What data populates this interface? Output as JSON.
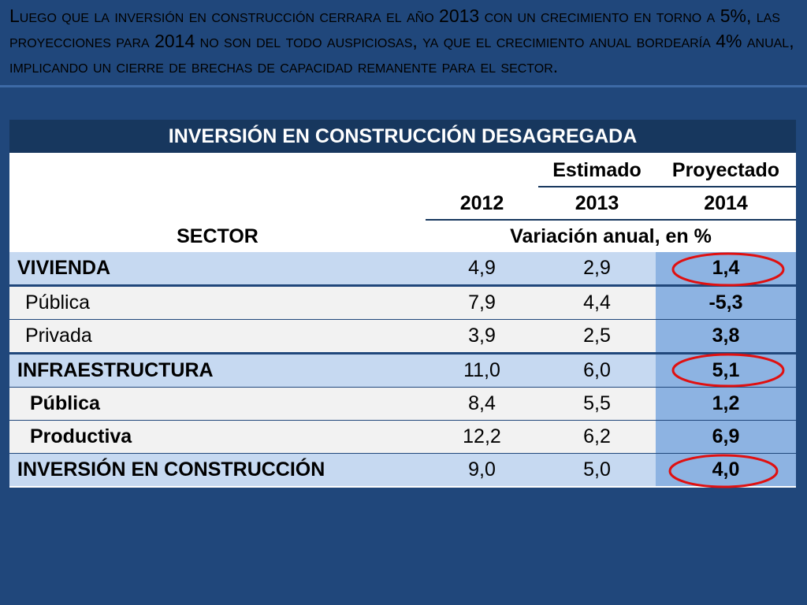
{
  "intro": "Luego que la inversión en construcción cerrara el año 2013 con un crecimiento en torno a 5%, las proyecciones para 2014 no son del todo auspiciosas, ya que el crecimiento anual bordearía 4% anual, implicando un cierre de brechas de capacidad remanente para el sector.",
  "table": {
    "title": "INVERSIÓN EN CONSTRUCCIÓN DESAGREGADA",
    "estimated": "Estimado",
    "projected": "Proyectado",
    "years": [
      "2012",
      "2013",
      "2014"
    ],
    "sector_label": "SECTOR",
    "unit_label": "Variación anual, en %",
    "rows": [
      [
        "VIVIENDA",
        "4,9",
        "2,9",
        "1,4"
      ],
      [
        "Pública",
        "7,9",
        "4,4",
        "-5,3"
      ],
      [
        "Privada",
        "3,9",
        "2,5",
        "3,8"
      ],
      [
        "INFRAESTRUCTURA",
        "11,0",
        "6,0",
        "5,1"
      ],
      [
        "Pública",
        "8,4",
        "5,5",
        "1,2"
      ],
      [
        "Productiva",
        "12,2",
        "6,2",
        "6,9"
      ],
      [
        "INVERSIÓN EN CONSTRUCCIÓN",
        "9,0",
        "5,0",
        "4,0"
      ]
    ]
  }
}
